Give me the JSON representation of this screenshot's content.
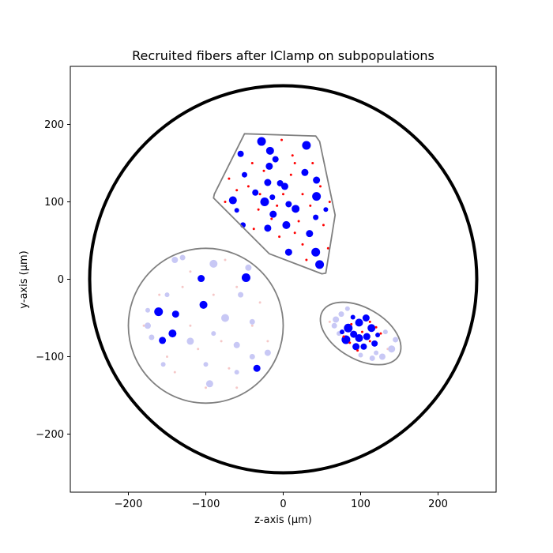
{
  "chart_data": {
    "type": "scatter",
    "title": "Recruited fibers after IClamp on subpopulations",
    "xlabel": "z-axis (µm)",
    "ylabel": "y-axis (µm)",
    "xlim": [
      -275,
      275
    ],
    "ylim": [
      -275,
      275
    ],
    "xticks": [
      -200,
      -100,
      0,
      100,
      200
    ],
    "yticks": [
      -200,
      -100,
      0,
      100,
      200
    ],
    "xtick_labels": [
      "−200",
      "−100",
      "0",
      "100",
      "200"
    ],
    "ytick_labels": [
      "−200",
      "−100",
      "0",
      "100",
      "200"
    ],
    "grid": false,
    "aspect": "equal",
    "colors": {
      "outline": "#808080",
      "nerve": "#000000",
      "recruited_large": "#0000ff",
      "recruited_small": "#ff0000",
      "unrecruited_large": "#c8c8f5",
      "unrecruited_small": "#f5c8c8"
    },
    "nerve_boundary": {
      "center": [
        0,
        0
      ],
      "radius": 250
    },
    "fascicles": [
      {
        "name": "polygon",
        "shape": "polygon",
        "vertices": [
          [
            -50,
            188
          ],
          [
            42,
            185
          ],
          [
            47,
            178
          ],
          [
            67,
            83
          ],
          [
            55,
            8
          ],
          [
            50,
            7
          ],
          [
            -18,
            33
          ],
          [
            -90,
            105
          ],
          [
            -89,
            110
          ]
        ]
      },
      {
        "name": "circle",
        "shape": "circle",
        "center": [
          -100,
          -60
        ],
        "radius": 100
      },
      {
        "name": "ellipse",
        "shape": "ellipse",
        "center": [
          100,
          -70
        ],
        "rx": 57,
        "ry": 33,
        "angle": -30
      }
    ],
    "fibers": [
      {
        "z": -28,
        "y": 178,
        "r": 5.5,
        "recruited": true,
        "kind": "large"
      },
      {
        "z": 30,
        "y": 173,
        "r": 5.5,
        "recruited": true,
        "kind": "large"
      },
      {
        "z": -17,
        "y": 166,
        "r": 5,
        "recruited": true,
        "kind": "large"
      },
      {
        "z": -10,
        "y": 155,
        "r": 4,
        "recruited": true,
        "kind": "large"
      },
      {
        "z": -55,
        "y": 162,
        "r": 4,
        "recruited": true,
        "kind": "large"
      },
      {
        "z": -18,
        "y": 146,
        "r": 4.5,
        "recruited": true,
        "kind": "large"
      },
      {
        "z": 28,
        "y": 138,
        "r": 4.5,
        "recruited": true,
        "kind": "large"
      },
      {
        "z": -50,
        "y": 135,
        "r": 3.5,
        "recruited": true,
        "kind": "large"
      },
      {
        "z": 43,
        "y": 128,
        "r": 4.5,
        "recruited": true,
        "kind": "large"
      },
      {
        "z": -20,
        "y": 125,
        "r": 4.5,
        "recruited": true,
        "kind": "large"
      },
      {
        "z": -4,
        "y": 124,
        "r": 4,
        "recruited": true,
        "kind": "large"
      },
      {
        "z": 2,
        "y": 120,
        "r": 4.5,
        "recruited": true,
        "kind": "large"
      },
      {
        "z": -36,
        "y": 112,
        "r": 4,
        "recruited": true,
        "kind": "large"
      },
      {
        "z": -65,
        "y": 102,
        "r": 5,
        "recruited": true,
        "kind": "large"
      },
      {
        "z": -14,
        "y": 106,
        "r": 3.5,
        "recruited": true,
        "kind": "large"
      },
      {
        "z": -24,
        "y": 100,
        "r": 5.5,
        "recruited": true,
        "kind": "large"
      },
      {
        "z": 43,
        "y": 107,
        "r": 5.5,
        "recruited": true,
        "kind": "large"
      },
      {
        "z": 7,
        "y": 97,
        "r": 4,
        "recruited": true,
        "kind": "large"
      },
      {
        "z": 16,
        "y": 91,
        "r": 5,
        "recruited": true,
        "kind": "large"
      },
      {
        "z": -13,
        "y": 84,
        "r": 4.5,
        "recruited": true,
        "kind": "large"
      },
      {
        "z": 42,
        "y": 80,
        "r": 3.5,
        "recruited": true,
        "kind": "large"
      },
      {
        "z": 4,
        "y": 70,
        "r": 5,
        "recruited": true,
        "kind": "large"
      },
      {
        "z": -20,
        "y": 66,
        "r": 4.5,
        "recruited": true,
        "kind": "large"
      },
      {
        "z": 34,
        "y": 59,
        "r": 4.5,
        "recruited": true,
        "kind": "large"
      },
      {
        "z": -52,
        "y": 70,
        "r": 3.5,
        "recruited": true,
        "kind": "large"
      },
      {
        "z": 7,
        "y": 35,
        "r": 4.5,
        "recruited": true,
        "kind": "large"
      },
      {
        "z": 42,
        "y": 35,
        "r": 5.5,
        "recruited": true,
        "kind": "large"
      },
      {
        "z": 47,
        "y": 19,
        "r": 5.5,
        "recruited": true,
        "kind": "large"
      },
      {
        "z": -60,
        "y": 89,
        "r": 3,
        "recruited": true,
        "kind": "large"
      },
      {
        "z": 55,
        "y": 90,
        "r": 3,
        "recruited": true,
        "kind": "large"
      },
      {
        "z": -48,
        "y": 2,
        "r": 5.5,
        "recruited": true,
        "kind": "large"
      },
      {
        "z": -106,
        "y": 1,
        "r": 4.5,
        "recruited": true,
        "kind": "large"
      },
      {
        "z": -103,
        "y": -33,
        "r": 5,
        "recruited": true,
        "kind": "large"
      },
      {
        "z": -161,
        "y": -42,
        "r": 5.5,
        "recruited": true,
        "kind": "large"
      },
      {
        "z": -139,
        "y": -45,
        "r": 4.5,
        "recruited": true,
        "kind": "large"
      },
      {
        "z": -143,
        "y": -70,
        "r": 5,
        "recruited": true,
        "kind": "large"
      },
      {
        "z": -156,
        "y": -79,
        "r": 4.5,
        "recruited": true,
        "kind": "large"
      },
      {
        "z": -34,
        "y": -115,
        "r": 4.5,
        "recruited": true,
        "kind": "large"
      },
      {
        "z": 84,
        "y": -63,
        "r": 5.5,
        "recruited": true,
        "kind": "large"
      },
      {
        "z": 98,
        "y": -56,
        "r": 5,
        "recruited": true,
        "kind": "large"
      },
      {
        "z": 107,
        "y": -50,
        "r": 4.5,
        "recruited": true,
        "kind": "large"
      },
      {
        "z": 114,
        "y": -63,
        "r": 5,
        "recruited": true,
        "kind": "large"
      },
      {
        "z": 91,
        "y": -71,
        "r": 4.5,
        "recruited": true,
        "kind": "large"
      },
      {
        "z": 98,
        "y": -76,
        "r": 5,
        "recruited": true,
        "kind": "large"
      },
      {
        "z": 81,
        "y": -78,
        "r": 5.5,
        "recruited": true,
        "kind": "large"
      },
      {
        "z": 108,
        "y": -74,
        "r": 4.5,
        "recruited": true,
        "kind": "large"
      },
      {
        "z": 94,
        "y": -87,
        "r": 4.5,
        "recruited": true,
        "kind": "large"
      },
      {
        "z": 104,
        "y": -87,
        "r": 4,
        "recruited": true,
        "kind": "large"
      },
      {
        "z": 118,
        "y": -83,
        "r": 4,
        "recruited": true,
        "kind": "large"
      },
      {
        "z": 76,
        "y": -68,
        "r": 3,
        "recruited": true,
        "kind": "large"
      },
      {
        "z": 90,
        "y": -49,
        "r": 3,
        "recruited": true,
        "kind": "large"
      },
      {
        "z": 122,
        "y": -72,
        "r": 3,
        "recruited": true,
        "kind": "large"
      },
      {
        "z": -40,
        "y": 150,
        "r": 1.5,
        "recruited": true,
        "kind": "small"
      },
      {
        "z": -45,
        "y": 120,
        "r": 1.5,
        "recruited": true,
        "kind": "small"
      },
      {
        "z": -70,
        "y": 130,
        "r": 1.5,
        "recruited": true,
        "kind": "small"
      },
      {
        "z": -32,
        "y": 90,
        "r": 1.5,
        "recruited": true,
        "kind": "small"
      },
      {
        "z": 15,
        "y": 150,
        "r": 1.5,
        "recruited": true,
        "kind": "small"
      },
      {
        "z": 25,
        "y": 110,
        "r": 1.5,
        "recruited": true,
        "kind": "small"
      },
      {
        "z": 52,
        "y": 70,
        "r": 1.5,
        "recruited": true,
        "kind": "small"
      },
      {
        "z": 20,
        "y": 75,
        "r": 1.5,
        "recruited": true,
        "kind": "small"
      },
      {
        "z": -5,
        "y": 55,
        "r": 1.5,
        "recruited": true,
        "kind": "small"
      },
      {
        "z": 25,
        "y": 45,
        "r": 1.5,
        "recruited": true,
        "kind": "small"
      },
      {
        "z": 30,
        "y": 25,
        "r": 1.5,
        "recruited": true,
        "kind": "small"
      },
      {
        "z": -2,
        "y": 180,
        "r": 1.5,
        "recruited": true,
        "kind": "small"
      },
      {
        "z": 10,
        "y": 135,
        "r": 1.5,
        "recruited": true,
        "kind": "small"
      },
      {
        "z": 38,
        "y": 150,
        "r": 1.5,
        "recruited": true,
        "kind": "small"
      },
      {
        "z": -60,
        "y": 115,
        "r": 1.5,
        "recruited": true,
        "kind": "small"
      },
      {
        "z": -8,
        "y": 95,
        "r": 1.5,
        "recruited": true,
        "kind": "small"
      },
      {
        "z": 58,
        "y": 40,
        "r": 1.5,
        "recruited": true,
        "kind": "small"
      },
      {
        "z": -38,
        "y": 65,
        "r": 1.5,
        "recruited": true,
        "kind": "small"
      },
      {
        "z": 12,
        "y": 160,
        "r": 1.5,
        "recruited": true,
        "kind": "small"
      },
      {
        "z": -25,
        "y": 140,
        "r": 1.5,
        "recruited": true,
        "kind": "small"
      },
      {
        "z": 48,
        "y": 120,
        "r": 1.5,
        "recruited": true,
        "kind": "small"
      },
      {
        "z": 0,
        "y": 110,
        "r": 1.5,
        "recruited": true,
        "kind": "small"
      },
      {
        "z": 35,
        "y": 95,
        "r": 1.5,
        "recruited": true,
        "kind": "small"
      },
      {
        "z": -15,
        "y": 78,
        "r": 1.5,
        "recruited": true,
        "kind": "small"
      },
      {
        "z": 15,
        "y": 60,
        "r": 1.5,
        "recruited": true,
        "kind": "small"
      },
      {
        "z": -75,
        "y": 100,
        "r": 1.5,
        "recruited": true,
        "kind": "small"
      },
      {
        "z": 60,
        "y": 100,
        "r": 1.5,
        "recruited": true,
        "kind": "small"
      },
      {
        "z": -30,
        "y": 110,
        "r": 1.5,
        "recruited": true,
        "kind": "small"
      },
      {
        "z": 88,
        "y": -58,
        "r": 1.5,
        "recruited": true,
        "kind": "small"
      },
      {
        "z": 112,
        "y": -55,
        "r": 1.5,
        "recruited": true,
        "kind": "small"
      },
      {
        "z": 120,
        "y": -62,
        "r": 1.5,
        "recruited": true,
        "kind": "small"
      },
      {
        "z": 86,
        "y": -82,
        "r": 1.5,
        "recruited": true,
        "kind": "small"
      },
      {
        "z": 102,
        "y": -68,
        "r": 1.5,
        "recruited": true,
        "kind": "small"
      },
      {
        "z": 112,
        "y": -80,
        "r": 1.5,
        "recruited": true,
        "kind": "small"
      },
      {
        "z": 78,
        "y": -74,
        "r": 1.5,
        "recruited": true,
        "kind": "small"
      },
      {
        "z": 96,
        "y": -92,
        "r": 1.5,
        "recruited": true,
        "kind": "small"
      },
      {
        "z": 126,
        "y": -70,
        "r": 1.5,
        "recruited": true,
        "kind": "small"
      },
      {
        "z": -80,
        "y": -80,
        "r": 1.5,
        "recruited": false,
        "kind": "small"
      },
      {
        "z": -160,
        "y": -20,
        "r": 1.5,
        "recruited": false,
        "kind": "small"
      },
      {
        "z": -60,
        "y": -10,
        "r": 1.5,
        "recruited": false,
        "kind": "small"
      },
      {
        "z": -140,
        "y": -120,
        "r": 1.5,
        "recruited": false,
        "kind": "small"
      },
      {
        "z": -40,
        "y": -60,
        "r": 1.5,
        "recruited": false,
        "kind": "small"
      },
      {
        "z": -100,
        "y": -140,
        "r": 1.5,
        "recruited": false,
        "kind": "small"
      },
      {
        "z": -120,
        "y": 10,
        "r": 1.5,
        "recruited": false,
        "kind": "small"
      },
      {
        "z": -70,
        "y": -115,
        "r": 1.5,
        "recruited": false,
        "kind": "small"
      },
      {
        "z": -110,
        "y": -90,
        "r": 1.5,
        "recruited": false,
        "kind": "small"
      },
      {
        "z": -180,
        "y": -60,
        "r": 1.5,
        "recruited": false,
        "kind": "small"
      },
      {
        "z": -30,
        "y": -30,
        "r": 1.5,
        "recruited": false,
        "kind": "small"
      },
      {
        "z": -90,
        "y": -20,
        "r": 1.5,
        "recruited": false,
        "kind": "small"
      },
      {
        "z": -130,
        "y": -10,
        "r": 1.5,
        "recruited": false,
        "kind": "small"
      },
      {
        "z": -60,
        "y": -140,
        "r": 1.5,
        "recruited": false,
        "kind": "small"
      },
      {
        "z": -150,
        "y": -100,
        "r": 1.5,
        "recruited": false,
        "kind": "small"
      },
      {
        "z": -20,
        "y": -80,
        "r": 1.5,
        "recruited": false,
        "kind": "small"
      },
      {
        "z": -120,
        "y": -60,
        "r": 1.5,
        "recruited": false,
        "kind": "small"
      },
      {
        "z": -75,
        "y": 25,
        "r": 1.5,
        "recruited": false,
        "kind": "small"
      },
      {
        "z": 135,
        "y": -90,
        "r": 1.5,
        "recruited": false,
        "kind": "small"
      },
      {
        "z": 60,
        "y": -55,
        "r": 1.5,
        "recruited": false,
        "kind": "small"
      },
      {
        "z": -90,
        "y": 20,
        "r": 5,
        "recruited": false,
        "kind": "large"
      },
      {
        "z": -120,
        "y": -80,
        "r": 4.5,
        "recruited": false,
        "kind": "large"
      },
      {
        "z": -175,
        "y": -60,
        "r": 4,
        "recruited": false,
        "kind": "large"
      },
      {
        "z": -170,
        "y": -75,
        "r": 3.5,
        "recruited": false,
        "kind": "large"
      },
      {
        "z": -60,
        "y": -85,
        "r": 4,
        "recruited": false,
        "kind": "large"
      },
      {
        "z": -40,
        "y": -100,
        "r": 3.5,
        "recruited": false,
        "kind": "large"
      },
      {
        "z": -20,
        "y": -95,
        "r": 4,
        "recruited": false,
        "kind": "large"
      },
      {
        "z": -95,
        "y": -135,
        "r": 4.5,
        "recruited": false,
        "kind": "large"
      },
      {
        "z": -55,
        "y": -20,
        "r": 3.5,
        "recruited": false,
        "kind": "large"
      },
      {
        "z": -75,
        "y": -50,
        "r": 5,
        "recruited": false,
        "kind": "large"
      },
      {
        "z": -140,
        "y": 25,
        "r": 4,
        "recruited": false,
        "kind": "large"
      },
      {
        "z": -130,
        "y": 28,
        "r": 3.5,
        "recruited": false,
        "kind": "large"
      },
      {
        "z": -175,
        "y": -40,
        "r": 3,
        "recruited": false,
        "kind": "large"
      },
      {
        "z": -150,
        "y": -20,
        "r": 3,
        "recruited": false,
        "kind": "large"
      },
      {
        "z": -40,
        "y": -55,
        "r": 3.5,
        "recruited": false,
        "kind": "large"
      },
      {
        "z": -100,
        "y": -110,
        "r": 3,
        "recruited": false,
        "kind": "large"
      },
      {
        "z": -45,
        "y": 15,
        "r": 4,
        "recruited": false,
        "kind": "large"
      },
      {
        "z": -60,
        "y": -120,
        "r": 3,
        "recruited": false,
        "kind": "large"
      },
      {
        "z": -155,
        "y": -110,
        "r": 3,
        "recruited": false,
        "kind": "large"
      },
      {
        "z": -90,
        "y": -70,
        "r": 3,
        "recruited": false,
        "kind": "large"
      },
      {
        "z": 68,
        "y": -52,
        "r": 4,
        "recruited": false,
        "kind": "large"
      },
      {
        "z": 66,
        "y": -60,
        "r": 3.5,
        "recruited": false,
        "kind": "large"
      },
      {
        "z": 75,
        "y": -45,
        "r": 3.5,
        "recruited": false,
        "kind": "large"
      },
      {
        "z": 140,
        "y": -90,
        "r": 4.5,
        "recruited": false,
        "kind": "large"
      },
      {
        "z": 128,
        "y": -100,
        "r": 4,
        "recruited": false,
        "kind": "large"
      },
      {
        "z": 115,
        "y": -102,
        "r": 3.5,
        "recruited": false,
        "kind": "large"
      },
      {
        "z": 100,
        "y": -98,
        "r": 3,
        "recruited": false,
        "kind": "large"
      },
      {
        "z": 145,
        "y": -78,
        "r": 3.5,
        "recruited": false,
        "kind": "large"
      },
      {
        "z": 132,
        "y": -68,
        "r": 3,
        "recruited": false,
        "kind": "large"
      },
      {
        "z": 72,
        "y": -70,
        "r": 3,
        "recruited": false,
        "kind": "large"
      },
      {
        "z": 83,
        "y": -38,
        "r": 3,
        "recruited": false,
        "kind": "large"
      },
      {
        "z": 120,
        "y": -95,
        "r": 3,
        "recruited": false,
        "kind": "large"
      }
    ]
  }
}
